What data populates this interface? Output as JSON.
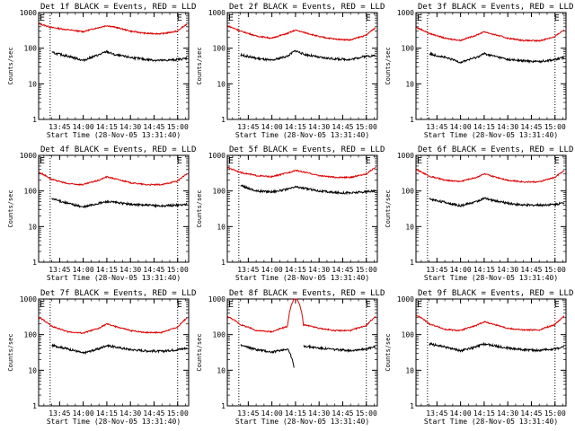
{
  "colors": {
    "events": "#000000",
    "lld": "#dd0000",
    "axis": "#000000",
    "background": "#ffffff"
  },
  "chart_data": [
    {
      "type": "line",
      "title": "Det 1f BLACK = Events, RED = LLD",
      "xlabel": "Start Time (28-Nov-05 13:31:40)",
      "ylabel": "Counts/sec",
      "ylim": [
        1,
        1000
      ],
      "yscale": "log",
      "xlim": [
        "13:31:40",
        "15:07:00"
      ],
      "xticks": [
        "13:45",
        "14:00",
        "14:15",
        "14:30",
        "14:45",
        "15:00"
      ],
      "yticks": [
        "1",
        "10",
        "100",
        "1000"
      ],
      "flag_label": "E",
      "flag_times": [
        "13:39",
        "15:00"
      ],
      "x": [
        "13:32",
        "13:40",
        "13:50",
        "14:00",
        "14:10",
        "14:15",
        "14:20",
        "14:30",
        "14:40",
        "14:50",
        "15:00",
        "15:06"
      ],
      "series": [
        {
          "name": "LLD",
          "values": [
            480,
            380,
            330,
            290,
            380,
            430,
            390,
            300,
            260,
            255,
            300,
            470
          ]
        },
        {
          "name": "Events",
          "values": [
            null,
            75,
            60,
            45,
            65,
            80,
            65,
            55,
            48,
            45,
            48,
            52
          ]
        }
      ]
    },
    {
      "type": "line",
      "title": "Det 2f BLACK = Events, RED = LLD",
      "xlabel": "Start Time (28-Nov-05 13:31:40)",
      "ylabel": "Counts/sec",
      "ylim": [
        1,
        1000
      ],
      "yscale": "log",
      "xlim": [
        "13:31:40",
        "15:07:00"
      ],
      "xticks": [
        "13:45",
        "14:00",
        "14:15",
        "14:30",
        "14:45",
        "15:00"
      ],
      "yticks": [
        "1",
        "10",
        "100",
        "1000"
      ],
      "flag_label": "E",
      "flag_times": [
        "13:39",
        "15:00"
      ],
      "x": [
        "13:32",
        "13:40",
        "13:50",
        "14:00",
        "14:10",
        "14:15",
        "14:20",
        "14:30",
        "14:40",
        "14:50",
        "15:00",
        "15:06"
      ],
      "series": [
        {
          "name": "LLD",
          "values": [
            420,
            300,
            220,
            190,
            260,
            320,
            280,
            210,
            180,
            170,
            230,
            380
          ]
        },
        {
          "name": "Events",
          "values": [
            null,
            65,
            52,
            45,
            60,
            85,
            68,
            55,
            50,
            48,
            60,
            62
          ]
        }
      ]
    },
    {
      "type": "line",
      "title": "Det 3f BLACK = Events, RED = LLD",
      "xlabel": "Start Time (28-Nov-05 13:31:40)",
      "ylabel": "Counts/sec",
      "ylim": [
        1,
        1000
      ],
      "yscale": "log",
      "xlim": [
        "13:31:40",
        "15:07:00"
      ],
      "xticks": [
        "13:45",
        "14:00",
        "14:15",
        "14:30",
        "14:45",
        "15:00"
      ],
      "yticks": [
        "1",
        "10",
        "100",
        "1000"
      ],
      "flag_label": "E",
      "flag_times": [
        "13:39",
        "15:00"
      ],
      "x": [
        "13:32",
        "13:40",
        "13:50",
        "14:00",
        "14:10",
        "14:15",
        "14:20",
        "14:30",
        "14:40",
        "14:50",
        "15:00",
        "15:06"
      ],
      "series": [
        {
          "name": "LLD",
          "values": [
            380,
            260,
            190,
            165,
            230,
            290,
            250,
            190,
            165,
            160,
            210,
            330
          ]
        },
        {
          "name": "Events",
          "values": [
            null,
            70,
            55,
            40,
            55,
            70,
            62,
            48,
            44,
            42,
            48,
            55
          ]
        }
      ]
    },
    {
      "type": "line",
      "title": "Det 4f BLACK = Events, RED = LLD",
      "xlabel": "Start Time (28-Nov-05 13:31:40)",
      "ylabel": "Counts/sec",
      "ylim": [
        1,
        1000
      ],
      "yscale": "log",
      "xlim": [
        "13:31:40",
        "15:07:00"
      ],
      "xticks": [
        "13:45",
        "14:00",
        "14:15",
        "14:30",
        "14:45",
        "15:00"
      ],
      "yticks": [
        "1",
        "10",
        "100",
        "1000"
      ],
      "flag_label": "E",
      "flag_times": [
        "13:39",
        "15:00"
      ],
      "x": [
        "13:32",
        "13:40",
        "13:50",
        "14:00",
        "14:10",
        "14:15",
        "14:20",
        "14:30",
        "14:40",
        "14:50",
        "15:00",
        "15:06"
      ],
      "series": [
        {
          "name": "LLD",
          "values": [
            330,
            210,
            160,
            150,
            200,
            250,
            220,
            170,
            150,
            150,
            190,
            300
          ]
        },
        {
          "name": "Events",
          "values": [
            null,
            60,
            45,
            35,
            45,
            50,
            48,
            42,
            40,
            38,
            40,
            42
          ]
        }
      ]
    },
    {
      "type": "line",
      "title": "Det 5f BLACK = Events, RED = LLD",
      "xlabel": "Start Time (28-Nov-05 13:31:40)",
      "ylabel": "Counts/sec",
      "ylim": [
        1,
        1000
      ],
      "yscale": "log",
      "xlim": [
        "13:31:40",
        "15:07:00"
      ],
      "xticks": [
        "13:45",
        "14:00",
        "14:15",
        "14:30",
        "14:45",
        "15:00"
      ],
      "yticks": [
        "1",
        "10",
        "100",
        "1000"
      ],
      "flag_label": "E",
      "flag_times": [
        "13:39",
        "15:00"
      ],
      "x": [
        "13:32",
        "13:40",
        "13:50",
        "14:00",
        "14:10",
        "14:15",
        "14:20",
        "14:30",
        "14:40",
        "14:50",
        "15:00",
        "15:06"
      ],
      "series": [
        {
          "name": "LLD",
          "values": [
            450,
            330,
            270,
            250,
            320,
            380,
            340,
            270,
            240,
            240,
            300,
            460
          ]
        },
        {
          "name": "Events",
          "values": [
            null,
            140,
            100,
            95,
            110,
            130,
            120,
            100,
            90,
            88,
            95,
            100
          ]
        }
      ]
    },
    {
      "type": "line",
      "title": "Det 6f BLACK = Events, RED = LLD",
      "xlabel": "Start Time (28-Nov-05 13:31:40)",
      "ylabel": "Counts/sec",
      "ylim": [
        1,
        1000
      ],
      "yscale": "log",
      "xlim": [
        "13:31:40",
        "15:07:00"
      ],
      "xticks": [
        "13:45",
        "14:00",
        "14:15",
        "14:30",
        "14:45",
        "15:00"
      ],
      "yticks": [
        "1",
        "10",
        "100",
        "1000"
      ],
      "flag_label": "E",
      "flag_times": [
        "13:39",
        "15:00"
      ],
      "x": [
        "13:32",
        "13:40",
        "13:50",
        "14:00",
        "14:10",
        "14:15",
        "14:20",
        "14:30",
        "14:40",
        "14:50",
        "15:00",
        "15:06"
      ],
      "series": [
        {
          "name": "LLD",
          "values": [
            390,
            260,
            200,
            185,
            240,
            300,
            260,
            200,
            180,
            180,
            240,
            370
          ]
        },
        {
          "name": "Events",
          "values": [
            null,
            60,
            48,
            38,
            50,
            62,
            55,
            45,
            40,
            40,
            42,
            46
          ]
        }
      ]
    },
    {
      "type": "line",
      "title": "Det 7f BLACK = Events, RED = LLD",
      "xlabel": "Start Time (28-Nov-05 13:31:40)",
      "ylabel": "Counts/sec",
      "ylim": [
        1,
        1000
      ],
      "yscale": "log",
      "xlim": [
        "13:31:40",
        "15:07:00"
      ],
      "xticks": [
        "13:45",
        "14:00",
        "14:15",
        "14:30",
        "14:45",
        "15:00"
      ],
      "yticks": [
        "1",
        "10",
        "100",
        "1000"
      ],
      "flag_label": "E",
      "flag_times": [
        "13:39",
        "15:00"
      ],
      "x": [
        "13:32",
        "13:40",
        "13:50",
        "14:00",
        "14:10",
        "14:15",
        "14:20",
        "14:30",
        "14:40",
        "14:50",
        "15:00",
        "15:06"
      ],
      "series": [
        {
          "name": "LLD",
          "values": [
            300,
            170,
            120,
            110,
            150,
            200,
            170,
            130,
            115,
            115,
            160,
            290
          ]
        },
        {
          "name": "Events",
          "values": [
            null,
            50,
            40,
            30,
            40,
            50,
            45,
            38,
            35,
            34,
            38,
            42
          ]
        }
      ]
    },
    {
      "type": "line",
      "title": "Det 8f BLACK = Events, RED = LLD",
      "xlabel": "Start Time (28-Nov-05 13:31:40)",
      "ylabel": "Counts/sec",
      "ylim": [
        1,
        1000
      ],
      "yscale": "log",
      "xlim": [
        "13:31:40",
        "15:07:00"
      ],
      "xticks": [
        "13:45",
        "14:00",
        "14:15",
        "14:30",
        "14:45",
        "15:00"
      ],
      "yticks": [
        "1",
        "10",
        "100",
        "1000"
      ],
      "flag_label": "E",
      "flag_times": [
        "13:39",
        "15:00"
      ],
      "x": [
        "13:32",
        "13:40",
        "13:50",
        "14:00",
        "14:10",
        "14:14",
        "14:15",
        "14:16",
        "14:20",
        "14:30",
        "14:40",
        "14:50",
        "15:00",
        "15:06"
      ],
      "series": [
        {
          "name": "LLD",
          "values": [
            320,
            190,
            130,
            120,
            170,
            1000,
            1000,
            1000,
            190,
            150,
            130,
            130,
            180,
            320
          ]
        },
        {
          "name": "Events",
          "values": [
            null,
            50,
            38,
            32,
            40,
            12,
            null,
            null,
            48,
            42,
            38,
            36,
            40,
            45
          ]
        }
      ]
    },
    {
      "type": "line",
      "title": "Det 9f BLACK = Events, RED = LLD",
      "xlabel": "Start Time (28-Nov-05 13:31:40)",
      "ylabel": "Counts/sec",
      "ylim": [
        1,
        1000
      ],
      "yscale": "log",
      "xlim": [
        "13:31:40",
        "15:07:00"
      ],
      "xticks": [
        "13:45",
        "14:00",
        "14:15",
        "14:30",
        "14:45",
        "15:00"
      ],
      "yticks": [
        "1",
        "10",
        "100",
        "1000"
      ],
      "flag_label": "E",
      "flag_times": [
        "13:39",
        "15:00"
      ],
      "x": [
        "13:32",
        "13:40",
        "13:50",
        "14:00",
        "14:10",
        "14:15",
        "14:20",
        "14:30",
        "14:40",
        "14:50",
        "15:00",
        "15:06"
      ],
      "series": [
        {
          "name": "LLD",
          "values": [
            350,
            200,
            140,
            130,
            180,
            230,
            200,
            150,
            135,
            135,
            190,
            330
          ]
        },
        {
          "name": "Events",
          "values": [
            null,
            55,
            45,
            35,
            45,
            55,
            50,
            42,
            38,
            36,
            40,
            45
          ]
        }
      ]
    }
  ]
}
